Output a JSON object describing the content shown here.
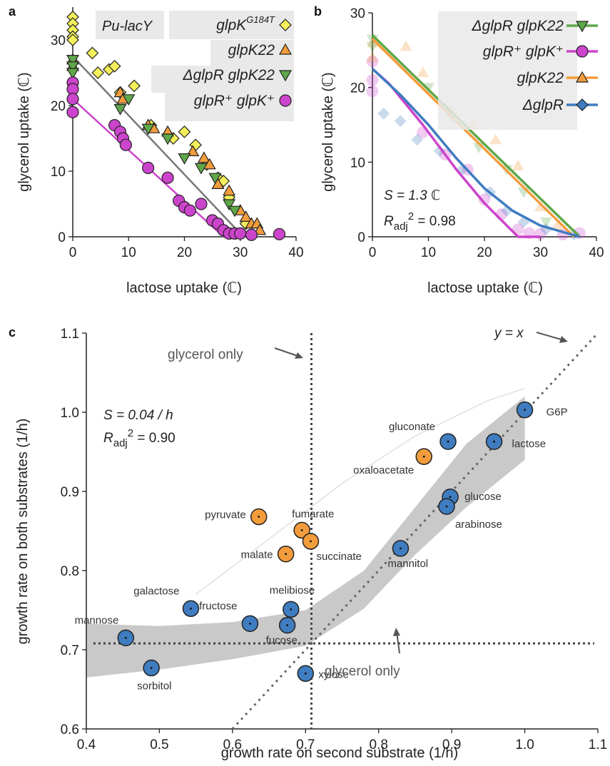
{
  "panels": {
    "a": "a",
    "b": "b",
    "c": "c"
  },
  "colors": {
    "orange": "#f39c3c",
    "green": "#5fa84a",
    "magenta": "#cc44cc",
    "yellow": "#f4f05a",
    "blue": "#3f7cc0",
    "gray": "#7a7a7a",
    "fitA": "#777777"
  },
  "chart_data": [
    {
      "id": "a",
      "type": "scatter",
      "xlabel": "lactose uptake (ℂ)",
      "ylabel": "glycerol uptake (ℂ)",
      "xlim": [
        0,
        40
      ],
      "ylim": [
        0,
        35
      ],
      "xticks": [
        "0",
        "10",
        "20",
        "30",
        "40"
      ],
      "yticks": [
        "0",
        "10",
        "20",
        "30"
      ],
      "box_label": "Pu-lacY",
      "series": [
        {
          "name": "glpK",
          "sup": "G184T",
          "marker": "diamond",
          "color": "#f4f05a",
          "points": [
            [
              0,
              33.5
            ],
            [
              0,
              32.5
            ],
            [
              0,
              31.5
            ],
            [
              0,
              30.5
            ],
            [
              0,
              30
            ],
            [
              3.5,
              28
            ],
            [
              4.5,
              25
            ],
            [
              6.5,
              25.5
            ],
            [
              7.5,
              26
            ],
            [
              8.5,
              22
            ],
            [
              11,
              23
            ],
            [
              14,
              17
            ],
            [
              18,
              15
            ],
            [
              20,
              16
            ],
            [
              22,
              14
            ],
            [
              24,
              11
            ],
            [
              26,
              9
            ],
            [
              27,
              8.5
            ],
            [
              28,
              6
            ],
            [
              31,
              2
            ]
          ]
        },
        {
          "name": "glpK22",
          "marker": "triangle-up",
          "color": "#f39c3c",
          "points": [
            [
              0,
              27
            ],
            [
              0,
              26
            ],
            [
              8.5,
              22
            ],
            [
              9,
              21
            ],
            [
              13.5,
              17
            ],
            [
              14.5,
              16.5
            ],
            [
              17,
              16
            ],
            [
              21.5,
              13
            ],
            [
              23.5,
              12
            ],
            [
              24.5,
              11
            ],
            [
              26,
              8
            ],
            [
              28,
              7
            ],
            [
              30,
              4
            ],
            [
              31,
              3
            ],
            [
              32,
              2
            ],
            [
              33,
              2
            ],
            [
              33.5,
              1
            ]
          ]
        },
        {
          "name": "ΔglpR glpK22",
          "marker": "triangle-down",
          "color": "#5fa84a",
          "points": [
            [
              0,
              27
            ],
            [
              0,
              26
            ],
            [
              0,
              25
            ],
            [
              8.5,
              19.5
            ],
            [
              10,
              21
            ],
            [
              13.5,
              16.5
            ],
            [
              17,
              15
            ],
            [
              20,
              12
            ],
            [
              23,
              10.5
            ],
            [
              25.5,
              9
            ],
            [
              28,
              5
            ],
            [
              29,
              4
            ]
          ]
        },
        {
          "name": "glpR⁺ glpK⁺",
          "marker": "circle",
          "color": "#cc44cc",
          "points": [
            [
              0,
              23.5
            ],
            [
              0,
              22.5
            ],
            [
              0,
              21
            ],
            [
              0,
              19
            ],
            [
              7.5,
              17
            ],
            [
              8.5,
              16
            ],
            [
              9,
              15
            ],
            [
              9.5,
              14
            ],
            [
              13.5,
              10.5
            ],
            [
              17,
              9
            ],
            [
              19,
              5.5
            ],
            [
              20,
              4.5
            ],
            [
              21,
              4
            ],
            [
              23,
              5
            ],
            [
              25,
              2.5
            ],
            [
              26,
              2
            ],
            [
              27,
              1
            ],
            [
              28,
              0.5
            ],
            [
              29,
              0.5
            ],
            [
              30,
              0.5
            ],
            [
              32,
              0.3
            ],
            [
              37,
              0.4
            ]
          ]
        }
      ],
      "fits": [
        {
          "x": [
            0,
            30
          ],
          "y": [
            27.5,
            0.5
          ]
        },
        {
          "x": [
            0,
            27
          ],
          "y": [
            21,
            0
          ]
        }
      ]
    },
    {
      "id": "b",
      "type": "line",
      "xlabel": "lactose uptake (ℂ)",
      "ylabel": "glycerol uptake (ℂ)",
      "xlim": [
        0,
        40
      ],
      "ylim": [
        0,
        30
      ],
      "xticks": [
        "0",
        "10",
        "20",
        "30",
        "40"
      ],
      "yticks": [
        "0",
        "10",
        "20",
        "30"
      ],
      "annotation_S": "S = 1.3 ℂ",
      "annotation_R": "R",
      "annotation_R_sub": "adj",
      "annotation_R_sup": "2",
      "annotation_R_val": " = 0.98",
      "series": [
        {
          "name": "ΔglpR glpK22",
          "color": "#5fa84a",
          "marker": "triangle-down",
          "x": [
            0,
            37
          ],
          "y": [
            27,
            0
          ]
        },
        {
          "name": "glpR⁺ glpK⁺",
          "color": "#cc44cc",
          "marker": "circle",
          "x": [
            0,
            3,
            9,
            15,
            20,
            26,
            30
          ],
          "y": [
            22.5,
            20.5,
            15,
            9,
            4.5,
            0,
            0
          ]
        },
        {
          "name": "glpK22",
          "color": "#f39c3c",
          "marker": "triangle-up",
          "x": [
            0,
            36
          ],
          "y": [
            26.5,
            0
          ]
        },
        {
          "name": "ΔglpR",
          "color": "#3f7cc0",
          "marker": "diamond",
          "x": [
            0,
            5,
            10,
            15,
            20,
            25,
            30,
            37
          ],
          "y": [
            22.5,
            19,
            15,
            10.5,
            6.5,
            3.5,
            1.5,
            0
          ]
        }
      ],
      "faded_points": [
        {
          "color": "#cc44cc",
          "marker": "circle",
          "points": [
            [
              0,
              19.5
            ],
            [
              0,
              21
            ],
            [
              0,
              23.5
            ],
            [
              9,
              14
            ],
            [
              13,
              11
            ],
            [
              17,
              9
            ],
            [
              20,
              5
            ],
            [
              23,
              3
            ],
            [
              26,
              1
            ],
            [
              28,
              0.5
            ],
            [
              30,
              0.4
            ],
            [
              34,
              0.3
            ],
            [
              37,
              0.5
            ]
          ]
        },
        {
          "color": "#f39c3c",
          "marker": "triangle-up",
          "points": [
            [
              0,
              26
            ],
            [
              0,
              24
            ],
            [
              6,
              25.5
            ],
            [
              9,
              22
            ],
            [
              14,
              17
            ],
            [
              18,
              15
            ],
            [
              22,
              13
            ],
            [
              26,
              9.5
            ],
            [
              30,
              4
            ],
            [
              33,
              1.5
            ]
          ]
        },
        {
          "color": "#5fa84a",
          "marker": "triangle-down",
          "points": [
            [
              0,
              26.5
            ],
            [
              0,
              25.5
            ],
            [
              10,
              20
            ],
            [
              14,
              16
            ],
            [
              19,
              12
            ],
            [
              24,
              9
            ],
            [
              27,
              6
            ],
            [
              31,
              2
            ]
          ]
        },
        {
          "color": "#3f7cc0",
          "marker": "diamond",
          "points": [
            [
              2,
              16.5
            ],
            [
              5,
              15.5
            ],
            [
              8,
              13
            ],
            [
              12,
              11.5
            ],
            [
              16,
              9
            ],
            [
              21,
              6
            ],
            [
              24,
              3.5
            ],
            [
              27,
              2
            ],
            [
              31,
              1
            ],
            [
              36,
              0.3
            ]
          ]
        }
      ]
    },
    {
      "id": "c",
      "type": "scatter",
      "xlabel": "growth rate on second substrate (1/h)",
      "ylabel": "growth rate on both substrates (1/h)",
      "xlim": [
        0.4,
        1.1
      ],
      "ylim": [
        0.6,
        1.1
      ],
      "xticks": [
        "0.4",
        "0.5",
        "0.6",
        "0.7",
        "0.8",
        "0.9",
        "1.0",
        "1.1"
      ],
      "yticks": [
        "0.6",
        "0.7",
        "0.8",
        "0.9",
        "1.0",
        "1.1"
      ],
      "annotation_S": "S = 0.04 / h",
      "annotation_R": "R",
      "annotation_R_sub": "adj",
      "annotation_R_sup": "2",
      "annotation_R_val": " = 0.90",
      "glycerol_label_top": "glycerol only",
      "glycerol_label_bottom": "glycerol only",
      "yx_label": "y = x",
      "glycerol_rate": 0.708,
      "points": [
        {
          "name": "G6P",
          "x": 1.0,
          "y": 1.003,
          "color": "#3f7cc0",
          "label": "G6P"
        },
        {
          "name": "lactose",
          "x": 0.958,
          "y": 0.963,
          "color": "#3f7cc0",
          "label": "lactose"
        },
        {
          "name": "gluconate",
          "x": 0.895,
          "y": 0.963,
          "color": "#3f7cc0",
          "label": "gluconate"
        },
        {
          "name": "oxaloacetate",
          "x": 0.862,
          "y": 0.944,
          "color": "#f39c3c",
          "label": "oxaloacetate"
        },
        {
          "name": "glucose",
          "x": 0.898,
          "y": 0.893,
          "color": "#3f7cc0",
          "label": "glucose"
        },
        {
          "name": "arabinose",
          "x": 0.893,
          "y": 0.881,
          "color": "#3f7cc0",
          "label": "arabinose"
        },
        {
          "name": "mannitol",
          "x": 0.83,
          "y": 0.828,
          "color": "#3f7cc0",
          "label": "mannitol"
        },
        {
          "name": "pyruvate",
          "x": 0.636,
          "y": 0.868,
          "color": "#f39c3c",
          "label": "pyruvate"
        },
        {
          "name": "fumarate",
          "x": 0.695,
          "y": 0.851,
          "color": "#f39c3c",
          "label": "fumarate"
        },
        {
          "name": "succinate",
          "x": 0.707,
          "y": 0.837,
          "color": "#f39c3c",
          "label": "succinate"
        },
        {
          "name": "malate",
          "x": 0.673,
          "y": 0.821,
          "color": "#f39c3c",
          "label": "malate"
        },
        {
          "name": "melibiose",
          "x": 0.68,
          "y": 0.751,
          "color": "#3f7cc0",
          "label": "melibiose"
        },
        {
          "name": "fructose",
          "x": 0.624,
          "y": 0.733,
          "color": "#3f7cc0",
          "label": "fructose"
        },
        {
          "name": "galactose",
          "x": 0.543,
          "y": 0.752,
          "color": "#3f7cc0",
          "label": "galactose"
        },
        {
          "name": "fucose",
          "x": 0.675,
          "y": 0.731,
          "color": "#3f7cc0",
          "label": "fucose"
        },
        {
          "name": "mannose",
          "x": 0.454,
          "y": 0.715,
          "color": "#3f7cc0",
          "label": "mannose"
        },
        {
          "name": "sorbitol",
          "x": 0.489,
          "y": 0.677,
          "color": "#3f7cc0",
          "label": "sorbitol"
        },
        {
          "name": "xylose",
          "x": 0.7,
          "y": 0.67,
          "color": "#3f7cc0",
          "label": "xylose"
        }
      ],
      "band_upper": [
        [
          0.4,
          0.733
        ],
        [
          0.5,
          0.73
        ],
        [
          0.6,
          0.735
        ],
        [
          0.7,
          0.75
        ],
        [
          0.78,
          0.8
        ],
        [
          0.85,
          0.88
        ],
        [
          0.92,
          0.96
        ],
        [
          1.0,
          1.02
        ]
      ],
      "band_lower": [
        [
          0.4,
          0.665
        ],
        [
          0.5,
          0.675
        ],
        [
          0.6,
          0.688
        ],
        [
          0.7,
          0.705
        ],
        [
          0.78,
          0.752
        ],
        [
          0.85,
          0.82
        ],
        [
          0.92,
          0.88
        ],
        [
          1.0,
          0.94
        ]
      ],
      "thin_curve": [
        [
          0.55,
          0.77
        ],
        [
          0.65,
          0.84
        ],
        [
          0.75,
          0.91
        ],
        [
          0.85,
          0.97
        ],
        [
          0.95,
          1.015
        ],
        [
          1.0,
          1.03
        ]
      ]
    }
  ]
}
